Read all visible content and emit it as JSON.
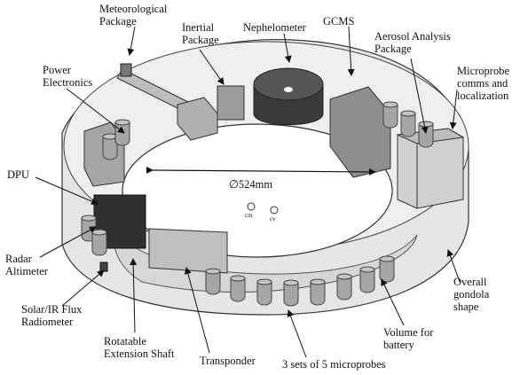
{
  "labels": {
    "meteorological_package": "Meteorological\nPackage",
    "inertial_package": "Inertial\nPackage",
    "nephelometer": "Nephelometer",
    "gcms": "GCMS",
    "aerosol_analysis_package": "Aerosol Analysis\nPackage",
    "microprobe_comms": "Microprobe\ncomms and\nlocalization",
    "power_electronics": "Power\nElectronics",
    "dpu": "DPU",
    "radar_altimeter": "Radar\nAltimeter",
    "solar_ir_flux_radiometer": "Solar/IR Flux\nRadiometer",
    "rotatable_extension_shaft": "Rotatable\nExtension Shaft",
    "transponder": "Transponder",
    "microprobes": "3 sets of 5 microprobes",
    "volume_for_battery": "Volume for\nbattery",
    "overall_gondola_shape": "Overall\ngondola\nshape"
  },
  "diameter": "∅524mm",
  "markers": {
    "cm": "cm",
    "cv": "cv"
  },
  "colors": {
    "ring_fill": "#e2e2e2",
    "ring_stroke": "#444444",
    "box_fill": "#9a9a9a",
    "dark_box": "#2e2e2e",
    "probe_fill": "#a8a8a8"
  }
}
